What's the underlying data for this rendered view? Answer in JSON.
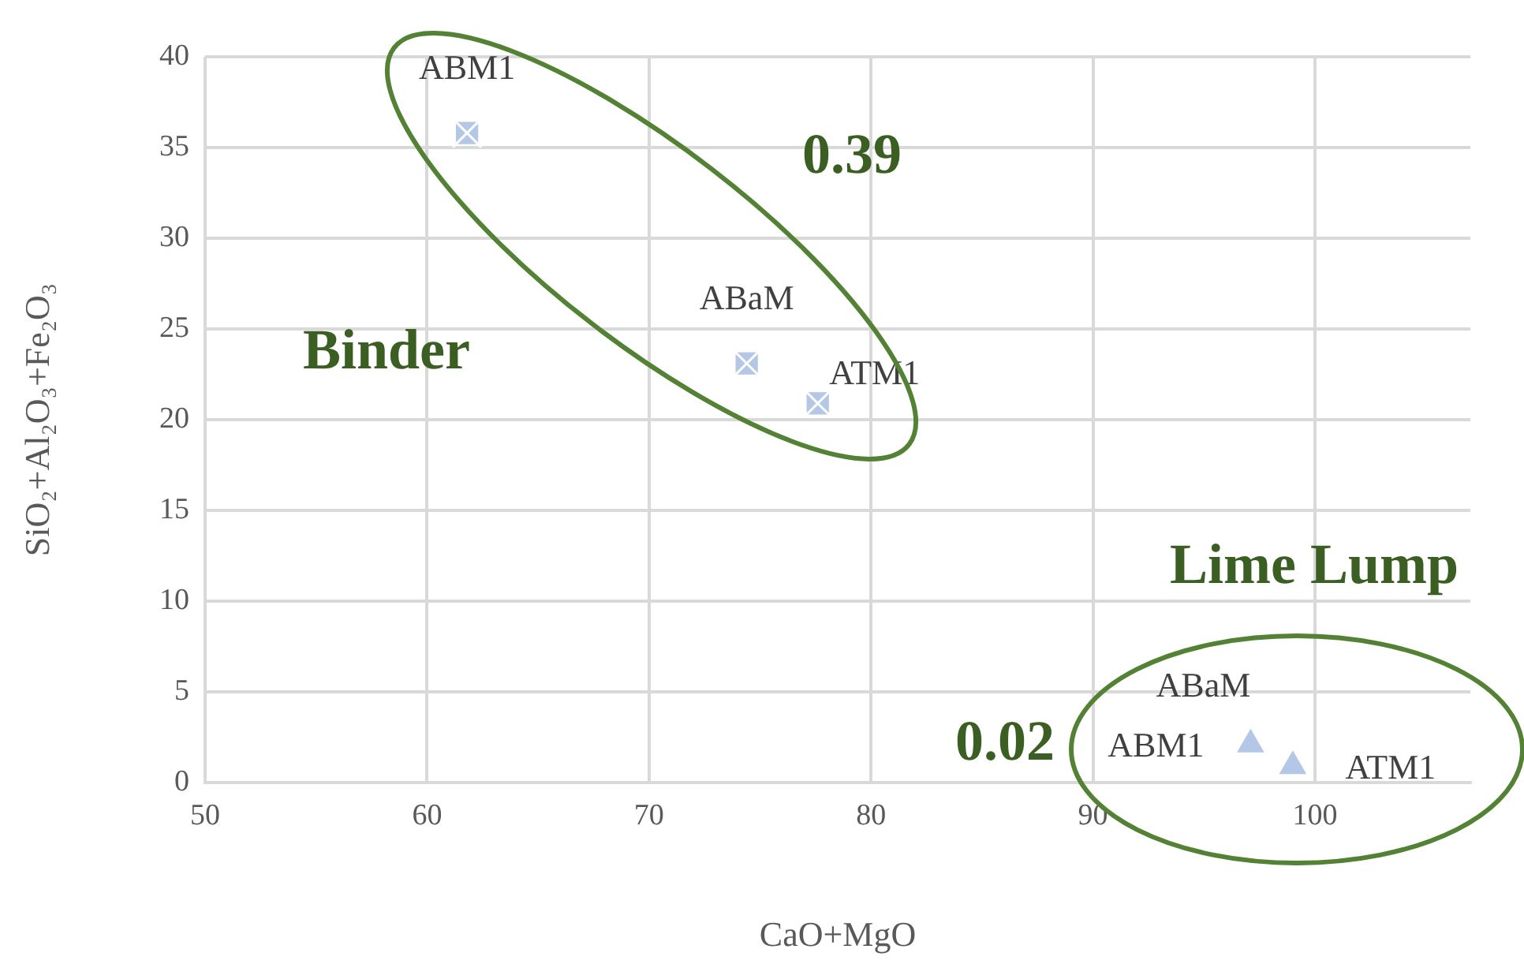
{
  "chart_data": {
    "type": "scatter",
    "xlabel": "CaO+MgO",
    "ylabel": "SiO₂+Al₂O₃+Fe₂O₃",
    "xlim": [
      50,
      107
    ],
    "xticks": [
      50,
      60,
      70,
      80,
      90,
      100
    ],
    "ylim": [
      0,
      40
    ],
    "yticks": [
      0,
      5,
      10,
      15,
      20,
      25,
      30,
      35,
      40
    ],
    "grid": true,
    "series": [
      {
        "color": "#b4c7e7",
        "marker": "square",
        "x": [
          61.8,
          74.4,
          77.6
        ],
        "values": [
          35.8,
          23.1,
          20.9
        ]
      },
      {
        "color": "#b4c7e7",
        "marker": "triangle",
        "x": [
          null,
          97.1,
          99.0
        ],
        "values": [
          null,
          2.1,
          0.9
        ]
      }
    ],
    "annotations": [
      {
        "text": "ABM1",
        "x": 61.8,
        "y": 35.8
      },
      {
        "text": "ABaM",
        "x": 74.4,
        "y": 23.1
      },
      {
        "text": "ATM1",
        "x": 77.6,
        "y": 20.9
      },
      {
        "text": "ABM1",
        "x": 97.1,
        "y": 2.1
      },
      {
        "text": "ABaM",
        "x": 97.1,
        "y": 2.1
      },
      {
        "text": "ATM1",
        "x": 99.0,
        "y": 0.9
      },
      "0.39",
      "Binder",
      "Lime Lump",
      "0.02"
    ]
  }
}
